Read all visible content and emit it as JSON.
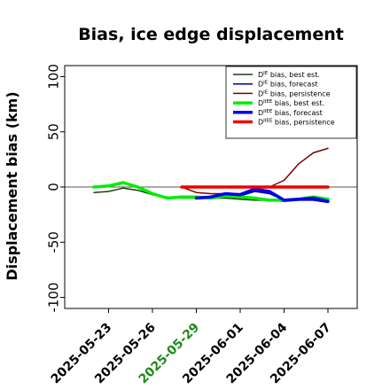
{
  "chart_data": {
    "type": "line",
    "title": "Bias, ice edge displacement",
    "xlabel": "",
    "ylabel": "Displacement bias (km)",
    "ylim": [
      -110,
      110
    ],
    "yticks": [
      -100,
      -50,
      0,
      50,
      100
    ],
    "xlim": [
      "2025-05-20",
      "2025-06-09"
    ],
    "xticks": [
      "2025-05-23",
      "2025-05-26",
      "2025-05-29",
      "2025-06-01",
      "2025-06-04",
      "2025-06-07"
    ],
    "highlight_tick": "2025-05-29",
    "grid": false,
    "legend_position": "top-right",
    "colors": {
      "dark_green": "#1b3d10",
      "dark_blue": "#0000a0",
      "dark_red": "#7a0000",
      "green": "#00ee00",
      "blue": "#0000ee",
      "red": "#ee0000",
      "highlight": "#1a8a1a",
      "zero_line": "#555555"
    },
    "series": [
      {
        "name": "D^IE bias, best est.",
        "legend_sup": "IE",
        "legend_rest": " bias, best est.",
        "color": "#1b3d10",
        "width": 1.5,
        "x": [
          "2025-05-22",
          "2025-05-23",
          "2025-05-24",
          "2025-05-25",
          "2025-05-26",
          "2025-05-27",
          "2025-05-28",
          "2025-05-29",
          "2025-05-30",
          "2025-05-31",
          "2025-06-01",
          "2025-06-02",
          "2025-06-03",
          "2025-06-04",
          "2025-06-05",
          "2025-06-06",
          "2025-06-07"
        ],
        "y": [
          -5,
          -4,
          -1,
          -3,
          -7,
          -9,
          -10,
          -10,
          -10,
          -10,
          -11,
          -12,
          -12,
          -13,
          -12,
          -11,
          -12
        ]
      },
      {
        "name": "D^IE bias, forecast",
        "legend_sup": "IE",
        "legend_rest": " bias, forecast",
        "color": "#0000a0",
        "width": 1.5,
        "x": [
          "2025-05-29",
          "2025-05-30",
          "2025-05-31",
          "2025-06-01",
          "2025-06-02",
          "2025-06-03",
          "2025-06-04",
          "2025-06-05",
          "2025-06-06",
          "2025-06-07"
        ],
        "y": [
          -9,
          -9,
          -7,
          -8,
          -4,
          -6,
          -12,
          -12,
          -12,
          -14
        ]
      },
      {
        "name": "D^IE bias, persistence",
        "legend_sup": "IE",
        "legend_rest": " bias, persistence",
        "color": "#7a0000",
        "width": 1.5,
        "x": [
          "2025-05-28",
          "2025-05-29",
          "2025-05-30",
          "2025-05-31",
          "2025-06-01",
          "2025-06-02",
          "2025-06-03",
          "2025-06-04",
          "2025-06-05",
          "2025-06-06",
          "2025-06-07"
        ],
        "y": [
          0,
          -5,
          -6,
          -6,
          -6,
          -1,
          0,
          6,
          21,
          31,
          35
        ]
      },
      {
        "name": "D^IIEE bias, best est.",
        "legend_sup": "IIEE",
        "legend_rest": " bias, best est.",
        "color": "#00ee00",
        "width": 3.5,
        "x": [
          "2025-05-22",
          "2025-05-23",
          "2025-05-24",
          "2025-05-25",
          "2025-05-26",
          "2025-05-27",
          "2025-05-28",
          "2025-05-29",
          "2025-05-30",
          "2025-05-31",
          "2025-06-01",
          "2025-06-02",
          "2025-06-03",
          "2025-06-04",
          "2025-06-05",
          "2025-06-06",
          "2025-06-07"
        ],
        "y": [
          0,
          1,
          4,
          0,
          -6,
          -10,
          -9,
          -9,
          -10,
          -8,
          -9,
          -10,
          -12,
          -12,
          -11,
          -9,
          -11
        ]
      },
      {
        "name": "D^IIEE bias, forecast",
        "legend_sup": "IIEE",
        "legend_rest": " bias, forecast",
        "color": "#0000ee",
        "width": 3.5,
        "x": [
          "2025-05-29",
          "2025-05-30",
          "2025-05-31",
          "2025-06-01",
          "2025-06-02",
          "2025-06-03",
          "2025-06-04",
          "2025-06-05",
          "2025-06-06",
          "2025-06-07"
        ],
        "y": [
          -10,
          -9,
          -6,
          -7,
          -2,
          -4,
          -12,
          -11,
          -10,
          -13
        ]
      },
      {
        "name": "D^IIEE bias, persistence",
        "legend_sup": "IIEE",
        "legend_rest": " bias, persistence",
        "color": "#ee0000",
        "width": 3.5,
        "x": [
          "2025-05-28",
          "2025-06-07"
        ],
        "y": [
          0,
          0
        ]
      }
    ]
  }
}
